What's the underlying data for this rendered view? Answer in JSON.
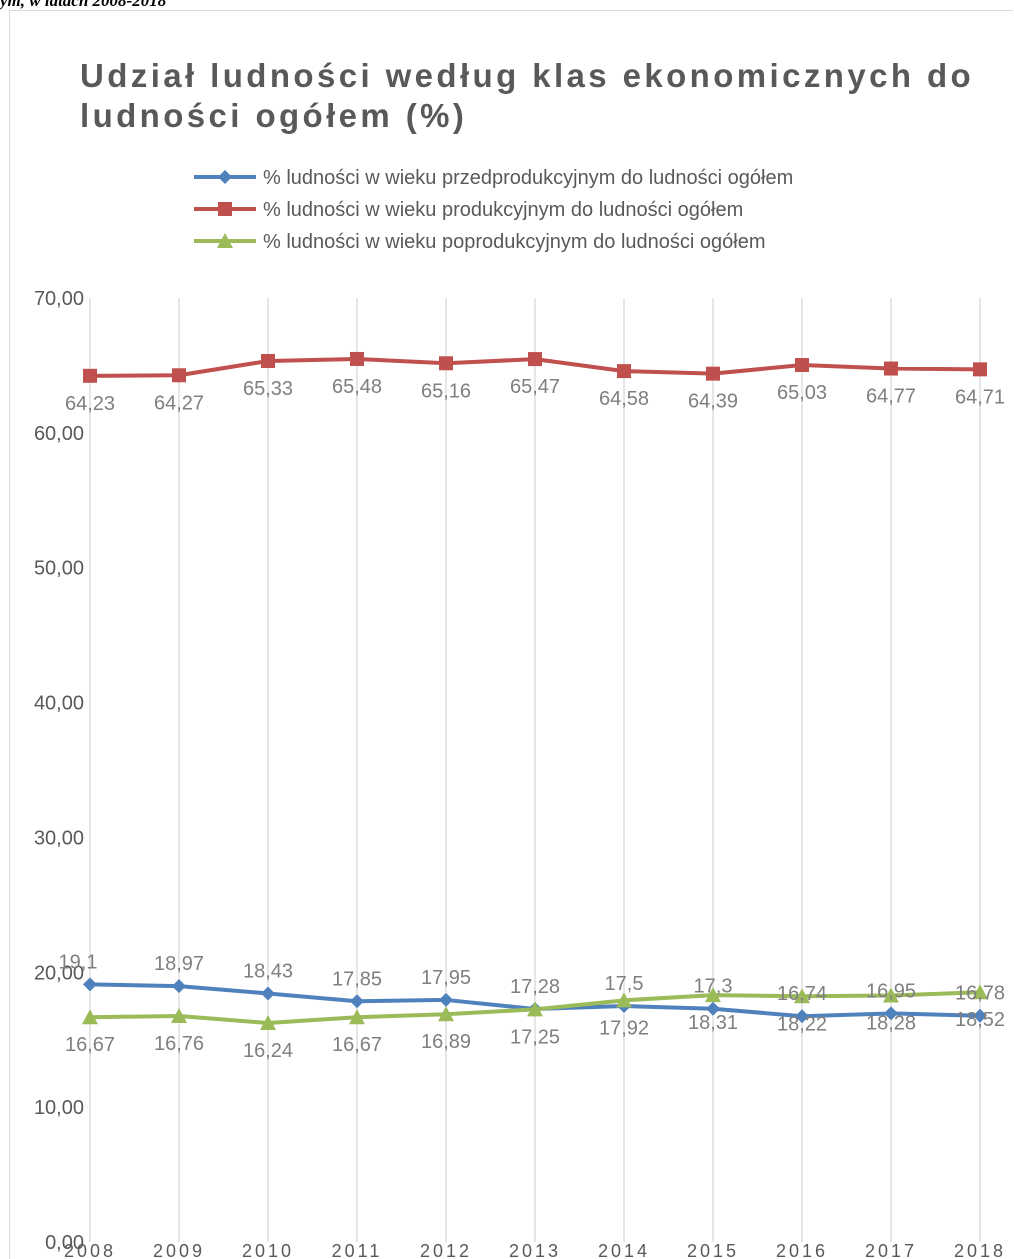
{
  "header": {
    "caption": "ym, w latach 2008-2018"
  },
  "chart_data": {
    "type": "line",
    "title": "Udział ludności według klas ekonomicznych do ludności ogółem (%)",
    "xlabel": "",
    "ylabel": "",
    "ylim": [
      0,
      70
    ],
    "yticks": [
      "0,00",
      "10,00",
      "20,00",
      "30,00",
      "40,00",
      "50,00",
      "60,00",
      "70,00"
    ],
    "categories": [
      "2008",
      "2009",
      "2010",
      "2011",
      "2012",
      "2013",
      "2014",
      "2015",
      "2016",
      "2017",
      "2018"
    ],
    "grid": "vertical",
    "legend": "top",
    "series": [
      {
        "name": "% ludności w wieku przedprodukcyjnym do ludności ogółem",
        "color": "#4f81bd",
        "marker": "diamond",
        "values": [
          19.1,
          18.97,
          18.43,
          17.85,
          17.95,
          17.28,
          17.5,
          17.3,
          16.74,
          16.95,
          16.78
        ],
        "labels": [
          "19,1",
          "18,97",
          "18,43",
          "17,85",
          "17,95",
          "17,28",
          "17,5",
          "17,3",
          "16,74",
          "16,95",
          "16,78"
        ]
      },
      {
        "name": "% ludności w wieku produkcyjnym do ludności ogółem",
        "color": "#c0504d",
        "marker": "square",
        "values": [
          64.23,
          64.27,
          65.33,
          65.48,
          65.16,
          65.47,
          64.58,
          64.39,
          65.03,
          64.77,
          64.71
        ],
        "labels": [
          "64,23",
          "64,27",
          "65,33",
          "65,48",
          "65,16",
          "65,47",
          "64,58",
          "64,39",
          "65,03",
          "64,77",
          "64,71"
        ]
      },
      {
        "name": "% ludności w wieku poprodukcyjnym do ludności ogółem",
        "color": "#9bbb59",
        "marker": "triangle",
        "values": [
          16.67,
          16.76,
          16.24,
          16.67,
          16.89,
          17.25,
          17.92,
          18.31,
          18.22,
          18.28,
          18.52
        ],
        "labels": [
          "16,67",
          "16,76",
          "16,24",
          "16,67",
          "16,89",
          "17,25",
          "17,92",
          "18,31",
          "18,22",
          "18,28",
          "18,52"
        ]
      }
    ]
  }
}
